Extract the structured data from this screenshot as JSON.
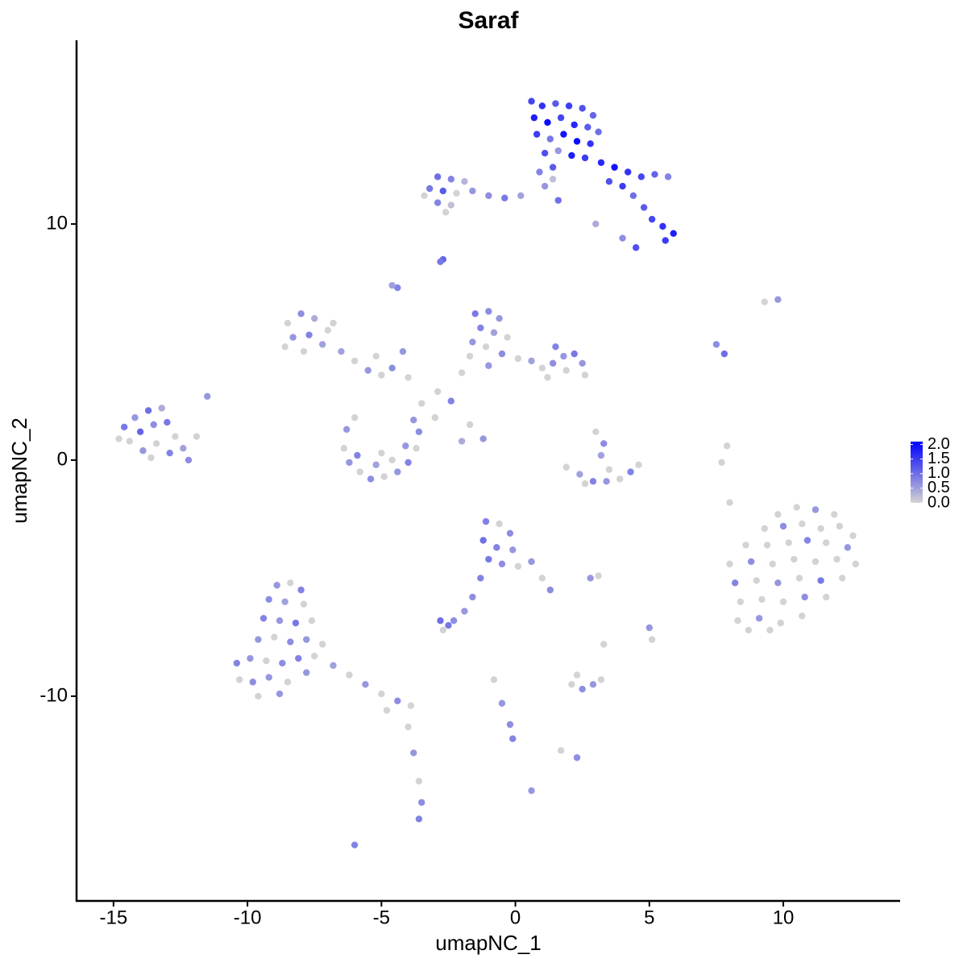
{
  "chart_data": {
    "type": "scatter",
    "title": "Saraf",
    "x_label": "umapNC_1",
    "y_label": "umapNC_2",
    "xlim": [
      -16.38,
      14.36
    ],
    "ylim": [
      -18.67,
      17.78
    ],
    "xticks": [
      -15,
      -10,
      -5,
      0,
      5,
      10
    ],
    "yticks": [
      -10,
      0,
      10
    ],
    "clim": [
      0,
      2.1
    ],
    "cticks": [
      {
        "value": 0,
        "label": "0.0"
      },
      {
        "value": 0.5,
        "label": "0.5"
      },
      {
        "value": 1,
        "label": "1.0"
      },
      {
        "value": 1.5,
        "label": "1.5"
      },
      {
        "value": 2,
        "label": "2.0"
      }
    ],
    "low_color": "#d3d3d3",
    "high_color": "#0000ff",
    "x": [
      0.6,
      1.0,
      1.5,
      2.0,
      2.5,
      2.9,
      0.7,
      1.2,
      1.7,
      2.2,
      2.7,
      3.1,
      0.8,
      1.3,
      1.8,
      2.3,
      2.8,
      1.1,
      1.6,
      2.1,
      2.6,
      1.4,
      0.9,
      3.2,
      3.7,
      4.2,
      4.7,
      5.2,
      5.7,
      3.5,
      4.0,
      4.4,
      4.8,
      5.1,
      5.5,
      5.9,
      5.6,
      4.5,
      4.0,
      3.0,
      1.6,
      1.1,
      1.4,
      -2.9,
      -2.4,
      -1.9,
      -3.2,
      -2.7,
      -2.2,
      -1.6,
      -1.0,
      -0.4,
      0.2,
      -2.9,
      -2.4,
      -3.4,
      -2.6,
      -2.7,
      -2.8,
      -4.4,
      -4.6,
      9.3,
      9.8,
      7.5,
      7.8,
      -14.6,
      -14.2,
      -13.7,
      -13.2,
      -14.4,
      -14.0,
      -13.5,
      -13.0,
      -12.7,
      -13.9,
      -13.4,
      -12.9,
      -12.4,
      -14.8,
      -12.2,
      -11.5,
      -11.9,
      -13.6,
      -8.0,
      -7.5,
      -8.5,
      -7.0,
      -8.3,
      -7.7,
      -7.2,
      -8.6,
      -7.9,
      -6.5,
      -6.0,
      -5.5,
      -5.0,
      -4.6,
      -4.0,
      -6.8,
      -5.2,
      -4.2,
      -1.5,
      -1.0,
      -0.6,
      -1.3,
      -0.8,
      -0.3,
      -1.6,
      -1.1,
      -0.5,
      0.1,
      -1.7,
      -1.0,
      0.6,
      1.0,
      1.5,
      1.8,
      2.2,
      1.4,
      1.9,
      2.5,
      2.6,
      1.2,
      -2.0,
      -2.4,
      -2.9,
      -3.5,
      -3.0,
      -1.7,
      -2.0,
      -1.2,
      -6.3,
      -6.4,
      -6.2,
      -5.8,
      -5.4,
      -4.9,
      -4.4,
      -4.0,
      -3.7,
      -3.6,
      -5.9,
      -5.2,
      -4.6,
      -4.1,
      -5.0,
      -3.8,
      -6.0,
      3.0,
      3.3,
      3.2,
      3.5,
      1.9,
      2.4,
      2.9,
      3.4,
      3.9,
      4.3,
      4.6,
      2.6,
      7.7,
      7.9,
      8.0,
      9.8,
      10.5,
      11.2,
      11.9,
      9.3,
      10.0,
      10.7,
      11.4,
      12.1,
      12.6,
      8.6,
      9.4,
      10.2,
      10.9,
      11.6,
      12.4,
      8.0,
      8.8,
      9.6,
      10.4,
      11.2,
      12.0,
      12.7,
      8.2,
      9.0,
      9.8,
      10.6,
      11.4,
      12.2,
      8.4,
      9.2,
      10.0,
      10.8,
      11.6,
      8.3,
      9.1,
      9.9,
      10.7,
      8.7,
      9.5,
      -8.9,
      -8.4,
      -8.0,
      -9.2,
      -8.6,
      -7.9,
      -9.4,
      -8.8,
      -8.2,
      -7.6,
      -9.6,
      -9.0,
      -8.4,
      -7.8,
      -7.2,
      -10.4,
      -9.9,
      -9.3,
      -8.7,
      -8.1,
      -7.5,
      -10.3,
      -9.8,
      -9.2,
      -8.5,
      -7.8,
      -9.6,
      -8.8,
      -6.8,
      -6.2,
      -5.6,
      -5.0,
      -4.4,
      -3.9,
      -4.8,
      -4.0,
      -3.8,
      -3.6,
      -3.5,
      -3.6,
      -6.0,
      -1.1,
      -0.6,
      -0.2,
      -1.2,
      -0.7,
      -0.1,
      -1.0,
      -0.5,
      0.1,
      0.6,
      1.0,
      1.3,
      -1.3,
      -1.6,
      -1.9,
      -2.8,
      -2.5,
      -2.3,
      -2.7,
      2.8,
      3.1,
      5.0,
      5.1,
      3.3,
      2.1,
      2.5,
      2.9,
      3.2,
      2.3,
      -0.8,
      -0.5,
      -0.2,
      -0.1,
      1.7,
      2.3,
      0.6
    ],
    "y": [
      15.2,
      15.0,
      15.1,
      15.0,
      14.9,
      14.6,
      14.5,
      14.3,
      14.5,
      14.2,
      14.1,
      13.9,
      13.8,
      13.6,
      13.8,
      13.5,
      13.4,
      13.0,
      13.1,
      12.9,
      12.8,
      12.4,
      12.2,
      12.6,
      12.4,
      12.2,
      12.0,
      12.1,
      12.0,
      11.8,
      11.6,
      11.2,
      10.7,
      10.2,
      9.9,
      9.6,
      9.3,
      9.0,
      9.4,
      10.0,
      11.0,
      11.6,
      11.9,
      12.0,
      11.9,
      11.8,
      11.5,
      11.4,
      11.3,
      11.4,
      11.2,
      11.1,
      11.2,
      10.9,
      10.8,
      11.2,
      10.5,
      8.5,
      8.4,
      7.3,
      7.4,
      6.7,
      6.8,
      4.9,
      4.5,
      1.4,
      1.8,
      2.1,
      2.2,
      0.8,
      1.2,
      1.5,
      1.6,
      1.0,
      0.4,
      0.7,
      0.3,
      0.5,
      0.9,
      0.0,
      2.7,
      1.0,
      0.1,
      6.2,
      6.0,
      5.8,
      5.5,
      5.2,
      5.3,
      4.9,
      4.8,
      4.6,
      4.6,
      4.2,
      3.8,
      3.6,
      3.9,
      3.5,
      5.8,
      4.4,
      4.6,
      6.2,
      6.3,
      6.0,
      5.6,
      5.4,
      5.2,
      5.0,
      4.8,
      4.5,
      4.3,
      4.4,
      4.0,
      4.2,
      3.9,
      4.8,
      4.4,
      4.5,
      4.1,
      3.8,
      4.1,
      3.6,
      3.5,
      3.7,
      2.5,
      2.9,
      2.4,
      1.8,
      1.5,
      0.8,
      0.9,
      1.3,
      0.5,
      -0.1,
      -0.5,
      -0.8,
      -0.7,
      -0.5,
      -0.1,
      0.5,
      1.2,
      0.2,
      -0.2,
      0.0,
      0.6,
      0.3,
      1.7,
      1.8,
      1.2,
      0.7,
      0.2,
      -0.4,
      -0.3,
      -0.6,
      -0.9,
      -0.9,
      -0.8,
      -0.5,
      -0.2,
      -1.0,
      -0.1,
      0.6,
      -1.8,
      -2.3,
      -2.0,
      -2.1,
      -2.3,
      -2.9,
      -2.8,
      -2.7,
      -2.9,
      -2.8,
      -3.2,
      -3.6,
      -3.6,
      -3.5,
      -3.4,
      -3.5,
      -3.7,
      -4.4,
      -4.3,
      -4.4,
      -4.2,
      -4.3,
      -4.2,
      -4.4,
      -5.2,
      -5.1,
      -5.2,
      -5.0,
      -5.1,
      -5.0,
      -6.0,
      -5.9,
      -6.0,
      -5.8,
      -5.8,
      -6.8,
      -6.7,
      -6.9,
      -6.6,
      -7.2,
      -7.2,
      -5.3,
      -5.2,
      -5.5,
      -5.9,
      -6.0,
      -6.1,
      -6.7,
      -6.8,
      -6.9,
      -6.8,
      -7.6,
      -7.5,
      -7.7,
      -7.6,
      -7.8,
      -8.6,
      -8.4,
      -8.5,
      -8.6,
      -8.4,
      -8.3,
      -9.3,
      -9.4,
      -9.2,
      -9.4,
      -9.0,
      -10.0,
      -9.9,
      -8.7,
      -9.1,
      -9.5,
      -9.9,
      -10.2,
      -10.4,
      -10.6,
      -11.3,
      -12.4,
      -13.6,
      -14.5,
      -15.2,
      -16.3,
      -2.6,
      -2.7,
      -3.1,
      -3.4,
      -3.7,
      -3.8,
      -4.2,
      -4.4,
      -4.5,
      -4.3,
      -5.0,
      -5.5,
      -5.0,
      -5.8,
      -6.4,
      -6.8,
      -7.0,
      -6.8,
      -7.2,
      -5.0,
      -4.9,
      -7.1,
      -7.6,
      -7.8,
      -9.5,
      -9.7,
      -9.5,
      -9.3,
      -9.1,
      -9.3,
      -10.3,
      -11.2,
      -11.8,
      -12.3,
      -12.6,
      -14.0
    ],
    "values": [
      1.4,
      1.6,
      1.2,
      1.5,
      1.3,
      1.1,
      1.8,
      2.0,
      1.4,
      1.7,
      1.2,
      1.0,
      1.5,
      0.9,
      1.9,
      2.0,
      1.6,
      1.3,
      0.6,
      1.8,
      1.5,
      1.2,
      0.8,
      1.7,
      1.9,
      1.6,
      1.4,
      1.1,
      0.8,
      1.3,
      1.5,
      1.0,
      1.2,
      1.4,
      1.6,
      1.8,
      1.5,
      1.3,
      0.7,
      0.4,
      1.0,
      0.6,
      0.2,
      1.0,
      0.8,
      0.3,
      0.9,
      1.2,
      0.0,
      0.6,
      0.7,
      0.9,
      0.5,
      0.8,
      0.2,
      0.0,
      0.0,
      1.1,
      0.9,
      0.8,
      0.5,
      0.0,
      0.6,
      0.7,
      1.0,
      0.9,
      0.6,
      1.0,
      0.4,
      0.0,
      1.1,
      0.7,
      0.9,
      0.0,
      0.6,
      0.0,
      0.8,
      0.5,
      0.0,
      0.7,
      0.6,
      0.0,
      0.0,
      0.7,
      0.4,
      0.0,
      0.0,
      0.6,
      0.8,
      0.5,
      0.0,
      0.0,
      0.5,
      0.0,
      0.6,
      0.0,
      0.7,
      0.0,
      0.0,
      0.0,
      0.6,
      0.9,
      0.7,
      0.6,
      0.8,
      0.5,
      0.0,
      0.6,
      0.0,
      0.7,
      0.0,
      0.0,
      0.6,
      0.5,
      0.0,
      0.8,
      0.6,
      0.9,
      0.7,
      0.0,
      0.6,
      0.0,
      0.0,
      0.0,
      0.8,
      0.0,
      0.0,
      0.0,
      0.0,
      0.4,
      0.6,
      0.6,
      0.0,
      0.6,
      0.0,
      0.7,
      0.0,
      0.6,
      0.8,
      0.0,
      0.7,
      0.8,
      0.5,
      0.0,
      0.6,
      0.0,
      0.6,
      0.0,
      0.0,
      0.7,
      0.5,
      0.0,
      0.0,
      0.5,
      0.8,
      0.6,
      0.0,
      0.8,
      0.0,
      0.0,
      0.0,
      0.0,
      0.0,
      0.0,
      0.0,
      0.6,
      0.0,
      0.0,
      0.7,
      0.0,
      0.0,
      0.0,
      0.0,
      0.0,
      0.0,
      0.0,
      0.8,
      0.0,
      0.6,
      0.0,
      0.7,
      0.0,
      0.0,
      0.0,
      0.0,
      0.0,
      0.8,
      0.0,
      0.6,
      0.0,
      0.9,
      0.0,
      0.0,
      0.0,
      0.0,
      0.7,
      0.0,
      0.0,
      0.6,
      0.0,
      0.0,
      0.0,
      0.0,
      0.6,
      0.0,
      0.8,
      0.7,
      0.5,
      0.0,
      0.8,
      0.6,
      0.9,
      0.0,
      0.6,
      0.0,
      0.7,
      0.6,
      0.0,
      0.8,
      0.6,
      0.0,
      0.7,
      0.8,
      0.0,
      0.0,
      0.7,
      0.6,
      0.0,
      0.6,
      0.0,
      0.6,
      0.5,
      0.0,
      0.6,
      0.0,
      0.7,
      0.0,
      0.0,
      0.0,
      0.6,
      0.0,
      0.7,
      0.8,
      0.8,
      0.8,
      0.0,
      0.7,
      1.0,
      0.8,
      0.6,
      0.9,
      0.7,
      0.0,
      0.6,
      0.0,
      0.7,
      0.8,
      0.7,
      0.6,
      1.0,
      0.9,
      0.7,
      0.0,
      0.6,
      0.0,
      0.6,
      0.0,
      0.0,
      0.0,
      0.7,
      0.6,
      0.0,
      0.0,
      0.0,
      0.6,
      0.7,
      0.8,
      0.0,
      0.7,
      0.6
    ]
  }
}
